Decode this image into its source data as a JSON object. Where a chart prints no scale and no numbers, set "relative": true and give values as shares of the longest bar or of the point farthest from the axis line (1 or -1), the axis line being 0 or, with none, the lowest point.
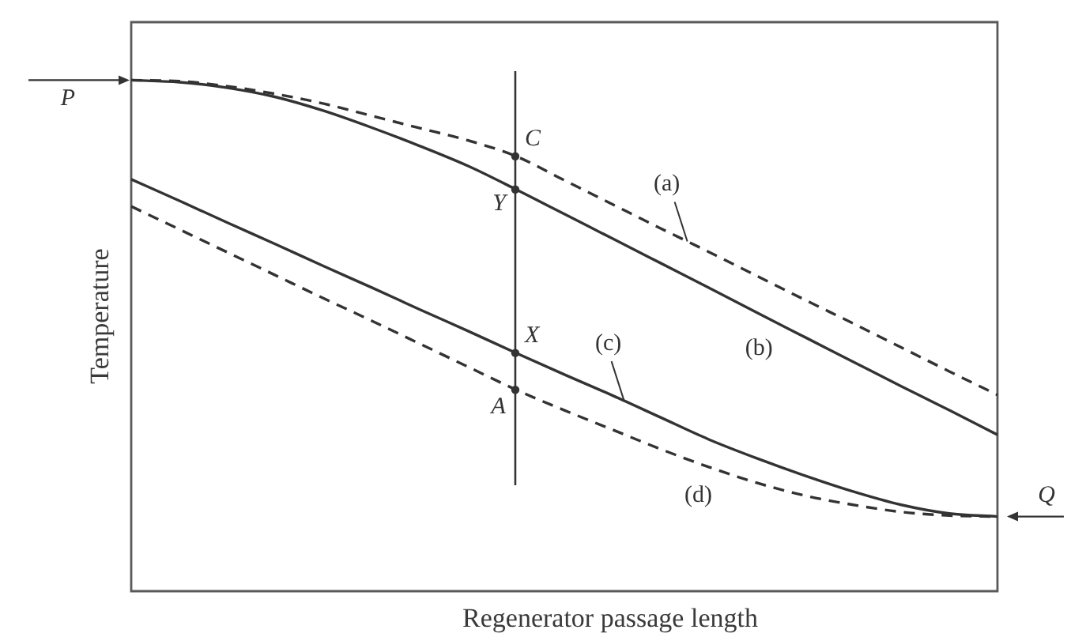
{
  "chart_data": {
    "type": "line",
    "xlabel": "Regenerator passage length",
    "ylabel": "Temperature",
    "relative": true,
    "tick_labels": false,
    "legend": false,
    "marker": "none",
    "categories": [
      null,
      null,
      null,
      null,
      null,
      null,
      null,
      null,
      null,
      null,
      null,
      null,
      null,
      null,
      null,
      null,
      null,
      null,
      null
    ],
    "series": [
      {
        "name": "(a)",
        "color": "#333333",
        "line_style": "dashed",
        "values": [
          1.0,
          0.998,
          0.988,
          0.973,
          0.954,
          0.93,
          0.906,
          0.882,
          0.851,
          0.804,
          0.757,
          0.71,
          0.664,
          0.617,
          0.57,
          0.524,
          0.477,
          0.43,
          0.384
        ]
      },
      {
        "name": "(b)",
        "color": "#333333",
        "line_style": "solid",
        "values": [
          1.0,
          0.996,
          0.985,
          0.967,
          0.94,
          0.907,
          0.871,
          0.832,
          0.786,
          0.738,
          0.69,
          0.642,
          0.594,
          0.545,
          0.497,
          0.449,
          0.401,
          0.354,
          0.306
        ]
      },
      {
        "name": "(c)",
        "color": "#333333",
        "line_style": "solid",
        "values": [
          0.806,
          0.764,
          0.721,
          0.679,
          0.636,
          0.594,
          0.551,
          0.509,
          0.466,
          0.424,
          0.383,
          0.34,
          0.297,
          0.26,
          0.226,
          0.195,
          0.169,
          0.152,
          0.146
        ]
      },
      {
        "name": "(d)",
        "color": "#333333",
        "line_style": "dashed",
        "values": [
          0.753,
          0.708,
          0.663,
          0.618,
          0.573,
          0.529,
          0.484,
          0.439,
          0.394,
          0.354,
          0.316,
          0.278,
          0.243,
          0.212,
          0.187,
          0.169,
          0.155,
          0.148,
          0.146
        ]
      }
    ],
    "annotations": [
      "P",
      {
        "text": "C",
        "y": 0.851
      },
      {
        "text": "Y",
        "y": 0.786
      },
      {
        "text": "X",
        "y": 0.466
      },
      {
        "text": "A",
        "y": 0.394
      },
      "Q"
    ]
  }
}
